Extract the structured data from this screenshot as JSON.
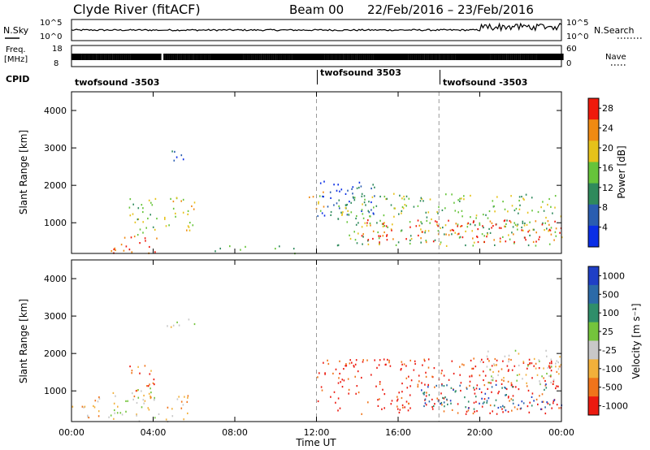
{
  "header": {
    "title": "Clyde River (fitACF)",
    "beam": "Beam 00",
    "date_range": "22/Feb/2016 – 23/Feb/2016"
  },
  "top_panels": {
    "nsky_label": "N.Sky",
    "nsky_ticks": [
      "10^5",
      "10^0"
    ],
    "nsearch_label": "N.Search",
    "nsearch_ticks": [
      "10^5",
      "10^0"
    ],
    "freq_label_1": "Freq.",
    "freq_label_2": "[MHz]",
    "freq_ticks": [
      "18",
      "8"
    ],
    "nave_label": "Nave",
    "nave_ticks": [
      "60",
      "0"
    ],
    "cpid_label": "CPID",
    "cpid_segments": [
      {
        "label": "twofsound -3503",
        "start_hour": 0
      },
      {
        "label": "twofsound 3503",
        "start_hour": 12
      },
      {
        "label": "twofsound -3503",
        "start_hour": 18
      }
    ]
  },
  "chart_data": [
    {
      "type": "heatmap",
      "title": "",
      "xlabel": "Time UT",
      "ylabel": "Slant Range [km]",
      "xlim": [
        "00:00",
        "00:00"
      ],
      "x_ticks": [
        "00:00",
        "04:00",
        "08:00",
        "12:00",
        "16:00",
        "20:00",
        "00:00"
      ],
      "ylim": [
        180,
        4500
      ],
      "y_ticks": [
        1000,
        2000,
        3000,
        4000
      ],
      "colorbar": {
        "label": "Power [dB]",
        "ticks": [
          4,
          8,
          12,
          16,
          20,
          24,
          28
        ],
        "range": [
          0,
          30
        ],
        "colors": [
          "#0a2ee6",
          "#2a5db0",
          "#2f8a5c",
          "#66c43a",
          "#e6c21a",
          "#f08a12",
          "#ef1a0c"
        ]
      },
      "data_gap_hours": [
        4.3,
        4.5
      ],
      "dashed_markers_hours": [
        12,
        18
      ],
      "echo_regions": [
        {
          "t_start": 1.9,
          "t_end": 4.3,
          "r_min": 200,
          "r_max": 700,
          "power_db": 26
        },
        {
          "t_start": 2.8,
          "t_end": 4.2,
          "r_min": 600,
          "r_max": 1700,
          "power_db": 14
        },
        {
          "t_start": 4.5,
          "t_end": 6.0,
          "r_min": 800,
          "r_max": 1800,
          "power_db": 18
        },
        {
          "t_start": 4.6,
          "t_end": 5.8,
          "r_min": 2650,
          "r_max": 2950,
          "power_db": 8
        },
        {
          "t_start": 7.0,
          "t_end": 8.5,
          "r_min": 200,
          "r_max": 400,
          "power_db": 10
        },
        {
          "t_start": 9.8,
          "t_end": 11.0,
          "r_min": 200,
          "r_max": 400,
          "power_db": 10
        },
        {
          "t_start": 11.5,
          "t_end": 12.4,
          "r_min": 1300,
          "r_max": 1900,
          "power_db": 18
        },
        {
          "t_start": 12.0,
          "t_end": 15.0,
          "r_min": 1200,
          "r_max": 2200,
          "power_db": 8
        },
        {
          "t_start": 13.0,
          "t_end": 24.0,
          "r_min": 400,
          "r_max": 1800,
          "power_db": 16
        },
        {
          "t_start": 14.0,
          "t_end": 24.0,
          "r_min": 500,
          "r_max": 1100,
          "power_db": 28
        }
      ]
    },
    {
      "type": "heatmap",
      "title": "",
      "xlabel": "Time UT",
      "ylabel": "Slant Range [km]",
      "xlim": [
        "00:00",
        "00:00"
      ],
      "x_ticks": [
        "00:00",
        "04:00",
        "08:00",
        "12:00",
        "16:00",
        "20:00",
        "00:00"
      ],
      "ylim": [
        180,
        4500
      ],
      "y_ticks": [
        1000,
        2000,
        3000,
        4000
      ],
      "colorbar": {
        "label": "Velocity [m s⁻¹]",
        "ticks": [
          "1000",
          "500",
          "100",
          "25",
          "-25",
          "-100",
          "-500",
          "-1000"
        ],
        "colors": [
          "#1f3fc6",
          "#2b6aa8",
          "#2f8e6a",
          "#74c43c",
          "#c8c8c8",
          "#f2b03a",
          "#f0741a",
          "#ec1a10"
        ]
      },
      "data_gap_hours": [
        4.3,
        4.5
      ],
      "dashed_markers_hours": [
        12,
        18
      ],
      "echo_regions": [
        {
          "t_start": 0.0,
          "t_end": 1.5,
          "r_min": 300,
          "r_max": 900,
          "velocity": -100
        },
        {
          "t_start": 1.8,
          "t_end": 4.3,
          "r_min": 200,
          "r_max": 1100,
          "velocity": 25
        },
        {
          "t_start": 2.8,
          "t_end": 4.2,
          "r_min": 800,
          "r_max": 1700,
          "velocity": -500
        },
        {
          "t_start": 4.6,
          "t_end": 6.0,
          "r_min": 2650,
          "r_max": 2950,
          "velocity": 0
        },
        {
          "t_start": 4.6,
          "t_end": 6.0,
          "r_min": 200,
          "r_max": 900,
          "velocity": -100
        },
        {
          "t_start": 12.0,
          "t_end": 24.0,
          "r_min": 400,
          "r_max": 1900,
          "velocity": -1000
        },
        {
          "t_start": 17.0,
          "t_end": 24.0,
          "r_min": 500,
          "r_max": 1200,
          "velocity": 500
        },
        {
          "t_start": 20.0,
          "t_end": 24.0,
          "r_min": 1200,
          "r_max": 2100,
          "velocity": 0
        }
      ]
    }
  ]
}
